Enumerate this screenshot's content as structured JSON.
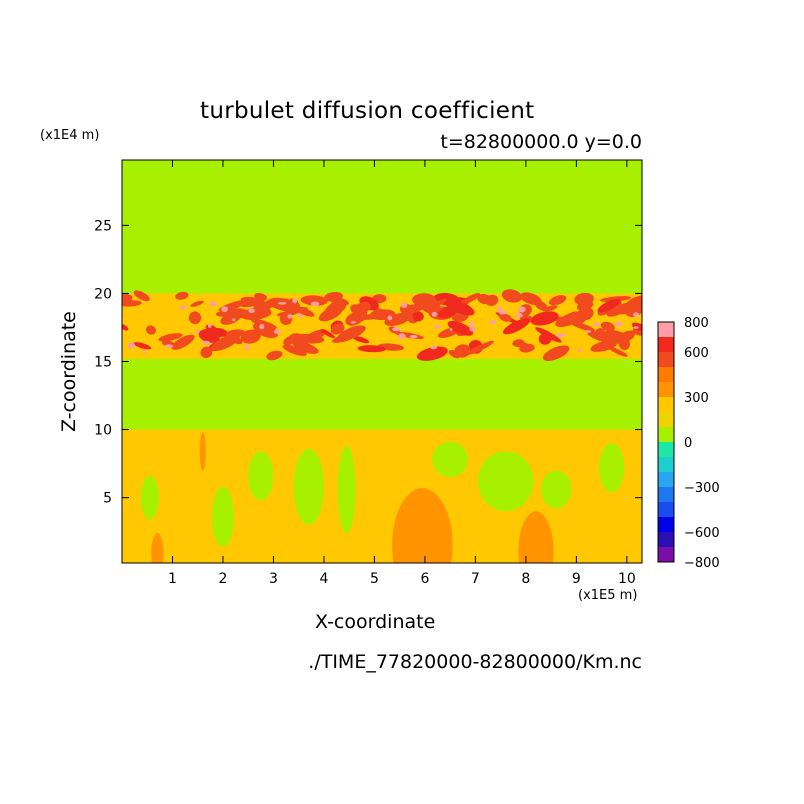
{
  "chart_data": {
    "type": "heatmap",
    "title": "turbulet diffusion coefficient",
    "subtitle": "t=82800000.0 y=0.0",
    "xlabel": "X-coordinate",
    "ylabel": "Z-coordinate",
    "x_unit_label": "(x1E5 m)",
    "y_unit_label": "(x1E4 m)",
    "xlim": [
      0,
      10.3
    ],
    "ylim": [
      0.2,
      29.8
    ],
    "x_ticks": [
      1,
      2,
      3,
      4,
      5,
      6,
      7,
      8,
      9,
      10
    ],
    "y_ticks": [
      5,
      10,
      15,
      20,
      25
    ],
    "colorbar": {
      "levels": [
        -800,
        -700,
        -600,
        -500,
        -400,
        -300,
        -200,
        -100,
        0,
        100,
        200,
        300,
        400,
        500,
        600,
        700,
        800
      ],
      "tick_values": [
        800,
        600,
        300,
        0,
        -300,
        -600,
        -800
      ],
      "tick_labels": [
        "800",
        "600",
        "300",
        "0",
        "−300",
        "−600",
        "−800"
      ],
      "colors": [
        "#7a0fa8",
        "#2a0fb5",
        "#0000e6",
        "#1a4df0",
        "#1e78f0",
        "#28a6f0",
        "#1ecfcf",
        "#1ee6a8",
        "#a6f000",
        "#f0d300",
        "#ffc800",
        "#ff9400",
        "#ff7a00",
        "#f04a1e",
        "#f0281e",
        "#ff9ea6"
      ]
    },
    "regions": {
      "background_value": 50,
      "lower_layer": {
        "z_top": 10.0,
        "value": 250
      },
      "lower_core_value": 350,
      "upper_band": {
        "z_bottom": 15.2,
        "z_top": 20.0,
        "values": [
          250,
          550,
          650,
          750
        ]
      }
    }
  },
  "source_file": "./TIME_77820000-82800000/Km.nc",
  "colors": {
    "background": "#ffffff",
    "axes": "#000000"
  }
}
